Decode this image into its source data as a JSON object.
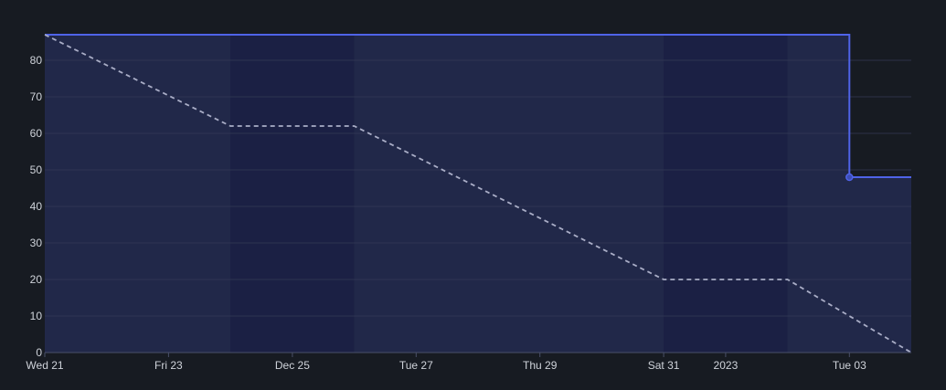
{
  "chart_data": {
    "type": "line",
    "title": "",
    "xlabel": "",
    "ylabel": "",
    "ylim": [
      0,
      87
    ],
    "xlim": [
      "2022-12-21",
      "2023-01-04"
    ],
    "grid": true,
    "legend": "none",
    "x_ticks": [
      {
        "date": "2022-12-21",
        "label": "Wed 21"
      },
      {
        "date": "2022-12-23",
        "label": "Fri 23"
      },
      {
        "date": "2022-12-25",
        "label": "Dec 25"
      },
      {
        "date": "2022-12-27",
        "label": "Tue 27"
      },
      {
        "date": "2022-12-29",
        "label": "Thu 29"
      },
      {
        "date": "2022-12-31",
        "label": "Sat 31"
      },
      {
        "date": "2023-01-01",
        "label": "2023"
      },
      {
        "date": "2023-01-03",
        "label": "Tue 03"
      }
    ],
    "y_ticks": [
      0,
      10,
      20,
      30,
      40,
      50,
      60,
      70,
      80
    ],
    "weekend_bands": [
      {
        "start": "2022-12-24",
        "end": "2022-12-26"
      },
      {
        "start": "2022-12-31",
        "end": "2023-01-02"
      }
    ],
    "series": [
      {
        "type": "step-area",
        "color": "#4f63e8",
        "points": [
          {
            "x": "2022-12-21",
            "y": 87
          },
          {
            "x": "2023-01-03",
            "y": 87
          },
          {
            "x": "2023-01-03",
            "y": 48
          },
          {
            "x": "2023-01-04",
            "y": 48
          }
        ],
        "markers": [
          {
            "x": "2023-01-03",
            "y": 48
          }
        ]
      },
      {
        "type": "dashed-line",
        "color": "#a9adc6",
        "points": [
          {
            "x": "2022-12-21",
            "y": 87
          },
          {
            "x": "2022-12-24",
            "y": 62
          },
          {
            "x": "2022-12-26",
            "y": 62
          },
          {
            "x": "2022-12-31",
            "y": 20
          },
          {
            "x": "2023-01-02",
            "y": 20
          },
          {
            "x": "2023-01-04",
            "y": 0
          }
        ]
      }
    ]
  },
  "colors": {
    "background": "#171b22",
    "area_fill": "#212849",
    "weekend_fill": "#1b2044",
    "grid": "#343a55",
    "axis": "#4a5069",
    "tick_text": "#cfd3da"
  }
}
